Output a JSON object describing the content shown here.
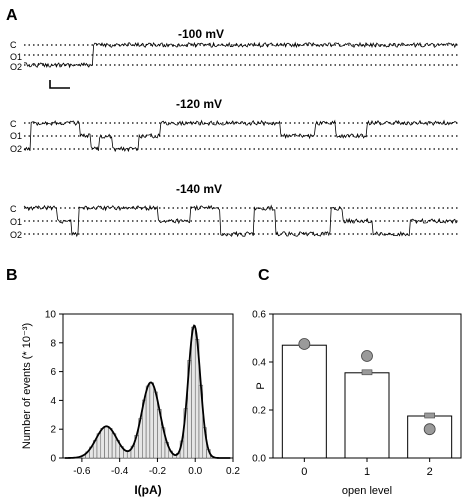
{
  "panels": {
    "a_label": "A",
    "b_label": "B",
    "c_label": "C"
  },
  "traces": [
    {
      "voltage": "-100 mV",
      "levels": [
        "C",
        "O1",
        "O2"
      ]
    },
    {
      "voltage": "-120 mV",
      "levels": [
        "C",
        "O1",
        "O2"
      ]
    },
    {
      "voltage": "-140 mV",
      "levels": [
        "C",
        "O1",
        "O2"
      ]
    }
  ],
  "chart_data": [
    {
      "type": "bar",
      "panel": "B",
      "xlabel": "I(pA)",
      "ylabel": "Number of events (* 10⁻³)",
      "xlim": [
        -0.7,
        0.2
      ],
      "ylim": [
        0,
        10
      ],
      "xticks": [
        "-0.6",
        "-0.4",
        "-0.2",
        "0.0",
        "0.2"
      ],
      "yticks": [
        "0",
        "2",
        "4",
        "6",
        "8",
        "10"
      ],
      "bin_width": 0.02,
      "fit_components": [
        {
          "mean": -0.47,
          "sd": 0.055,
          "amplitude": 2.2
        },
        {
          "mean": -0.235,
          "sd": 0.048,
          "amplitude": 5.25
        },
        {
          "mean": -0.005,
          "sd": 0.032,
          "amplitude": 9.2
        }
      ]
    },
    {
      "type": "bar",
      "panel": "C",
      "xlabel": "open level",
      "ylabel": "P",
      "categories": [
        "0",
        "1",
        "2"
      ],
      "ylim": [
        0,
        0.6
      ],
      "yticks": [
        "0.0",
        "0.2",
        "0.4",
        "0.6"
      ],
      "series": [
        {
          "values": [
            0.47,
            0.355,
            0.175
          ]
        },
        {
          "values": [
            0.475,
            0.425,
            0.12
          ]
        }
      ]
    }
  ]
}
